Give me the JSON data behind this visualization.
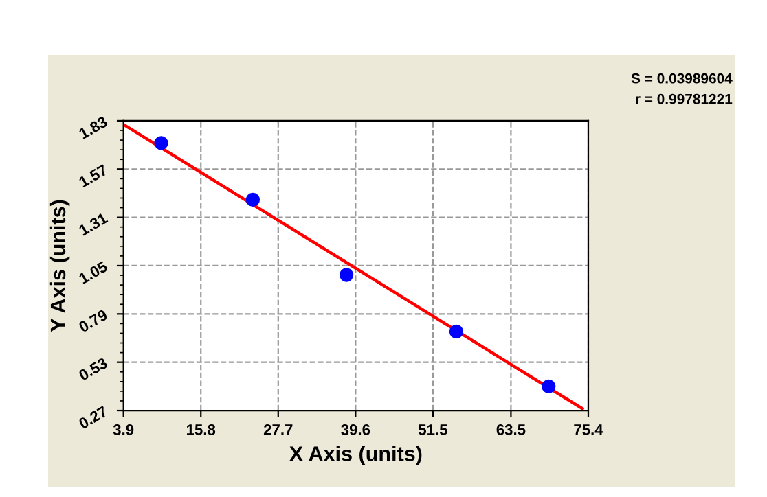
{
  "chart_data": {
    "type": "scatter",
    "xlabel": "X Axis (units)",
    "ylabel": "Y Axis (units)",
    "annotations": [
      "S = 0.03989604",
      "r = 0.99781221"
    ],
    "series": [
      {
        "color": "#0000ff",
        "marker": "circle",
        "x": [
          9.7,
          23.8,
          38.2,
          55.1,
          69.3
        ],
        "values": [
          1.71,
          1.405,
          1.0,
          0.695,
          0.4
        ]
      },
      {
        "type": "line",
        "color": "#ff0000",
        "marker": "none",
        "line_style": "solid",
        "x": [
          3.9,
          74.5
        ],
        "values": [
          1.81,
          0.28
        ]
      }
    ],
    "xlim": [
      3.9,
      75.4
    ],
    "xticks": [
      3.9,
      15.8,
      27.7,
      39.6,
      51.5,
      63.5,
      75.4
    ],
    "ylim": [
      0.27,
      1.83
    ],
    "yticks": [
      0.27,
      0.53,
      0.79,
      1.05,
      1.31,
      1.57,
      1.83
    ],
    "grid": true,
    "legend": false
  }
}
